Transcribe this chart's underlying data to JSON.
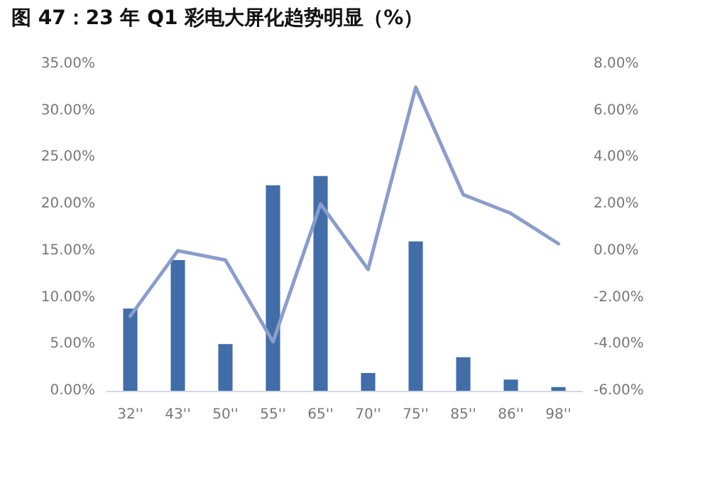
{
  "chart_data": {
    "type": "bar",
    "title": "图 47：23 年 Q1 彩电大屏化趋势明显（%）",
    "categories": [
      "32''",
      "43''",
      "50''",
      "55''",
      "65''",
      "70''",
      "75''",
      "85''",
      "86''",
      "98''"
    ],
    "series": [
      {
        "color": "#416da8",
        "values": [
          8.8,
          14.0,
          5.0,
          22.0,
          23.0,
          1.9,
          16.0,
          3.6,
          1.2,
          0.4
        ]
      },
      {
        "type": "line",
        "axis": "y2",
        "color": "#8a9dcb",
        "marker": "none",
        "values": [
          -2.8,
          0.0,
          -0.4,
          -3.9,
          2.0,
          -0.8,
          7.0,
          2.4,
          1.6,
          0.3
        ]
      }
    ],
    "ylim": [
      0,
      35
    ],
    "yticks": [
      {
        "value": 0,
        "label": "0.00%"
      },
      {
        "value": 5,
        "label": "5.00%"
      },
      {
        "value": 10,
        "label": "10.00%"
      },
      {
        "value": 15,
        "label": "15.00%"
      },
      {
        "value": 20,
        "label": "20.00%"
      },
      {
        "value": 25,
        "label": "25.00%"
      },
      {
        "value": 30,
        "label": "30.00%"
      },
      {
        "value": 35,
        "label": "35.00%"
      }
    ],
    "y2lim": [
      -6,
      8
    ],
    "y2ticks": [
      {
        "value": -6,
        "label": "-6.00%"
      },
      {
        "value": -4,
        "label": "-4.00%"
      },
      {
        "value": -2,
        "label": "-2.00%"
      },
      {
        "value": 0,
        "label": "0.00%"
      },
      {
        "value": 2,
        "label": "2.00%"
      },
      {
        "value": 4,
        "label": "4.00%"
      },
      {
        "value": 6,
        "label": "6.00%"
      },
      {
        "value": 8,
        "label": "8.00%"
      }
    ],
    "grid": false
  }
}
